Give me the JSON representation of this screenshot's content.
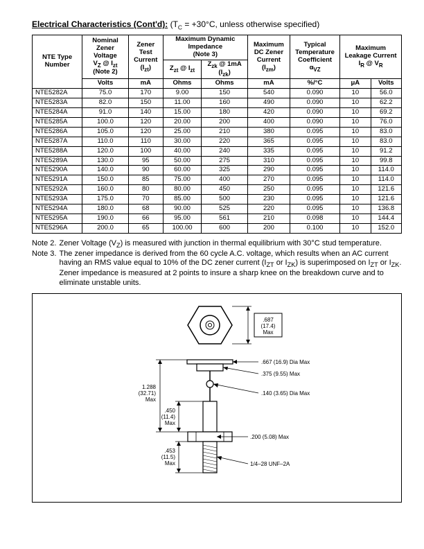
{
  "title": {
    "heading": "Electrical Characteristics (Cont'd):",
    "condition": " (T",
    "condition_sub": "C",
    "condition_after": " = +30°C, unless otherwise specified)"
  },
  "table": {
    "col_widths_pct": [
      13,
      12,
      9,
      10,
      12,
      11,
      13,
      8,
      8
    ],
    "header_rows": [
      {
        "cells": [
          {
            "text": "NTE Type Number",
            "rowspan": 3,
            "colspan": 1
          },
          {
            "text": "Nominal Zener Voltage",
            "sub": "V_Z @ I_zt",
            "note": "(Note 2)",
            "rowspan": 2,
            "colspan": 1
          },
          {
            "text": "Zener Test Current",
            "sub": "(I_zt)",
            "rowspan": 2,
            "colspan": 1
          },
          {
            "text": "Maximum Dynamic Impedance",
            "note": "(Note 3)",
            "colspan": 2
          },
          {
            "text": "Maximum DC Zener Current",
            "sub": "(I_zm)",
            "rowspan": 2,
            "colspan": 1
          },
          {
            "text": "Typical Temperature Coefficient",
            "sub": "α_VZ",
            "rowspan": 2,
            "colspan": 1
          },
          {
            "text": "Maximum Leakage Current",
            "sub": "I_R @ V_R",
            "rowspan": 2,
            "colspan": 2
          }
        ]
      },
      {
        "cells": [
          {
            "text": "Z_zt @ I_zt"
          },
          {
            "text": "Z_zk @ 1mA (I_zk)"
          }
        ]
      },
      {
        "cells": [
          {
            "text": "Volts"
          },
          {
            "text": "mA"
          },
          {
            "text": "Ohms"
          },
          {
            "text": "Ohms"
          },
          {
            "text": "mA"
          },
          {
            "text": "%/°C"
          },
          {
            "text": "μA"
          },
          {
            "text": "Volts"
          }
        ]
      }
    ],
    "rows": [
      [
        "NTE5282A",
        "75.0",
        "170",
        "9.00",
        "150",
        "540",
        "0.090",
        "10",
        "56.0"
      ],
      [
        "NTE5283A",
        "82.0",
        "150",
        "11.00",
        "160",
        "490",
        "0.090",
        "10",
        "62.2"
      ],
      [
        "NTE5284A",
        "91.0",
        "140",
        "15.00",
        "180",
        "420",
        "0.090",
        "10",
        "69.2"
      ],
      [
        "NTE5285A",
        "100.0",
        "120",
        "20.00",
        "200",
        "400",
        "0.090",
        "10",
        "76.0"
      ],
      [
        "NTE5286A",
        "105.0",
        "120",
        "25.00",
        "210",
        "380",
        "0.095",
        "10",
        "83.0"
      ],
      [
        "NTE5287A",
        "110.0",
        "110",
        "30.00",
        "220",
        "365",
        "0.095",
        "10",
        "83.0"
      ],
      [
        "NTE5288A",
        "120.0",
        "100",
        "40.00",
        "240",
        "335",
        "0.095",
        "10",
        "91.2"
      ],
      [
        "NTE5289A",
        "130.0",
        "95",
        "50.00",
        "275",
        "310",
        "0.095",
        "10",
        "99.8"
      ],
      [
        "NTE5290A",
        "140.0",
        "90",
        "60.00",
        "325",
        "290",
        "0.095",
        "10",
        "114.0"
      ],
      [
        "NTE5291A",
        "150.0",
        "85",
        "75.00",
        "400",
        "270",
        "0.095",
        "10",
        "114.0"
      ],
      [
        "NTE5292A",
        "160.0",
        "80",
        "80.00",
        "450",
        "250",
        "0.095",
        "10",
        "121.6"
      ],
      [
        "NTE5293A",
        "175.0",
        "70",
        "85.00",
        "500",
        "230",
        "0.095",
        "10",
        "121.6"
      ],
      [
        "NTE5294A",
        "180.0",
        "68",
        "90.00",
        "525",
        "220",
        "0.095",
        "10",
        "136.8"
      ],
      [
        "NTE5295A",
        "190.0",
        "66",
        "95.00",
        "561",
        "210",
        "0.098",
        "10",
        "144.4"
      ],
      [
        "NTE5296A",
        "200.0",
        "65",
        "100.00",
        "600",
        "200",
        "0.100",
        "10",
        "152.0"
      ]
    ]
  },
  "notes": {
    "note2_label": "Note   2.",
    "note2_text": " Zener Voltage (V_Z) is measured with junction in thermal equilibrium with 30°C stud temperature.",
    "note3_label": "Note   3.",
    "note3_text": "The zener impedance is derived from the 60 cycle A.C. voltage, which results when an AC current having an RMS value equal to 10% of the DC zener current (I_ZT or I_ZK) is superimposed on I_ZT or I_ZK.  Zener impedance is measured at 2 points to insure a sharp knee on the breakdown curve and to eliminate unstable units."
  },
  "diagram": {
    "labels": {
      "hex_dim": ".687 (17.4) Max",
      "dia1": ".667 (16.9) Dia Max",
      "dia2": ".375 (9.55) Max",
      "hole": ".140 (3.65) Dia Max",
      "length": "1.288 (32.71) Max",
      "body_len": ".450 (11.4) Max",
      "thread_len": ".453 (11.5) Max",
      "body_w": ".200 (5.08) Max",
      "thread": "1/4–28 UNF–2A"
    },
    "colors": {
      "line": "#000000",
      "fill": "#ffffff"
    }
  }
}
